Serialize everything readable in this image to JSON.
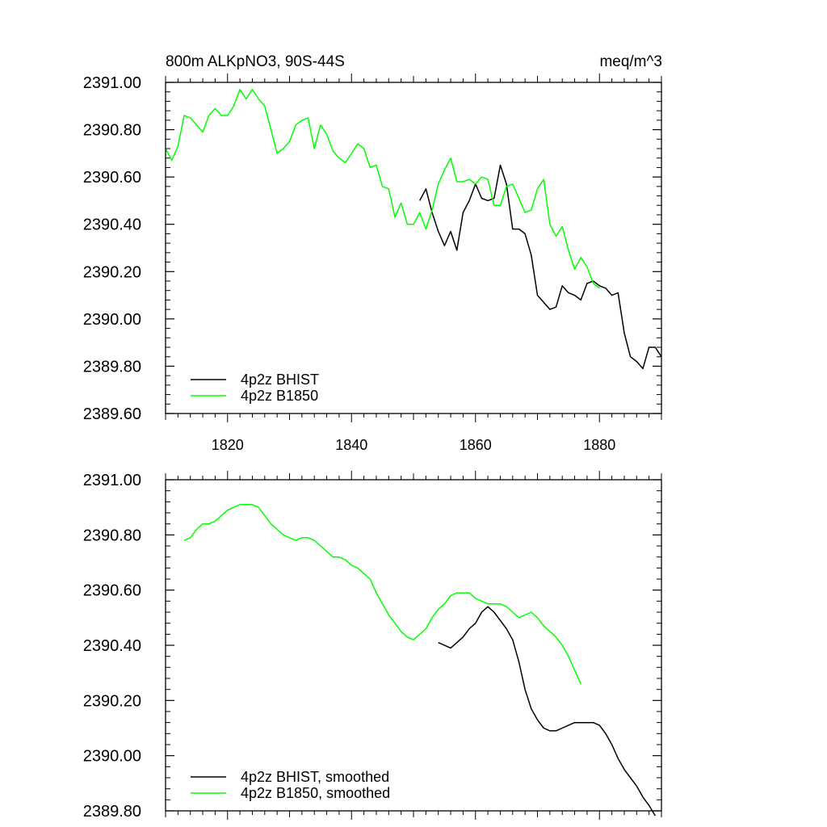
{
  "chart_data": [
    {
      "type": "line",
      "title": "800m ALKpNO3, 90S-44S",
      "units": "meq/m^3",
      "xlim": [
        1810,
        1890
      ],
      "ylim": [
        2389.6,
        2391.0
      ],
      "xticks": [
        "1820",
        "1840",
        "1860",
        "1880"
      ],
      "yticks": [
        "2389.60",
        "2389.80",
        "2390.00",
        "2390.20",
        "2390.40",
        "2390.60",
        "2390.80",
        "2391.00"
      ],
      "grid": false,
      "legend_position": "bottom-left",
      "series": [
        {
          "name": "4p2z BHIST",
          "color": "#000000",
          "x": [
            1851,
            1852,
            1853,
            1854,
            1855,
            1856,
            1857,
            1858,
            1859,
            1860,
            1861,
            1862,
            1863,
            1864,
            1865,
            1866,
            1867,
            1868,
            1869,
            1870,
            1871,
            1872,
            1873,
            1874,
            1875,
            1876,
            1877,
            1878,
            1879,
            1880,
            1881,
            1882,
            1883,
            1884,
            1885,
            1886,
            1887,
            1888,
            1889,
            1890
          ],
          "y": [
            2390.5,
            2390.55,
            2390.45,
            2390.37,
            2390.31,
            2390.37,
            2390.29,
            2390.45,
            2390.5,
            2390.57,
            2390.51,
            2390.5,
            2390.51,
            2390.65,
            2390.57,
            2390.38,
            2390.38,
            2390.36,
            2390.27,
            2390.1,
            2390.07,
            2390.04,
            2390.05,
            2390.14,
            2390.11,
            2390.1,
            2390.08,
            2390.15,
            2390.16,
            2390.14,
            2390.13,
            2390.1,
            2390.11,
            2389.94,
            2389.84,
            2389.82,
            2389.79,
            2389.88,
            2389.88,
            2389.84
          ]
        },
        {
          "name": "4p2z B1850",
          "color": "#00ff00",
          "x": [
            1810,
            1811,
            1812,
            1813,
            1814,
            1815,
            1816,
            1817,
            1818,
            1819,
            1820,
            1821,
            1822,
            1823,
            1824,
            1825,
            1826,
            1827,
            1828,
            1829,
            1830,
            1831,
            1832,
            1833,
            1834,
            1835,
            1836,
            1837,
            1838,
            1839,
            1840,
            1841,
            1842,
            1843,
            1844,
            1845,
            1846,
            1847,
            1848,
            1849,
            1850,
            1851,
            1852,
            1853,
            1854,
            1855,
            1856,
            1857,
            1858,
            1859,
            1860,
            1861,
            1862,
            1863,
            1864,
            1865,
            1866,
            1867,
            1868,
            1869,
            1870,
            1871,
            1872,
            1873,
            1874,
            1875,
            1876,
            1877,
            1878,
            1879,
            1880
          ],
          "y": [
            2390.72,
            2390.67,
            2390.73,
            2390.86,
            2390.85,
            2390.82,
            2390.79,
            2390.86,
            2390.89,
            2390.86,
            2390.86,
            2390.9,
            2390.97,
            2390.93,
            2390.97,
            2390.93,
            2390.9,
            2390.8,
            2390.7,
            2390.72,
            2390.75,
            2390.82,
            2390.84,
            2390.85,
            2390.72,
            2390.82,
            2390.78,
            2390.71,
            2390.68,
            2390.66,
            2390.7,
            2390.74,
            2390.72,
            2390.64,
            2390.65,
            2390.56,
            2390.55,
            2390.43,
            2390.49,
            2390.4,
            2390.4,
            2390.45,
            2390.38,
            2390.46,
            2390.57,
            2390.63,
            2390.68,
            2390.58,
            2390.58,
            2390.59,
            2390.57,
            2390.6,
            2390.59,
            2390.48,
            2390.48,
            2390.56,
            2390.57,
            2390.51,
            2390.45,
            2390.46,
            2390.55,
            2390.59,
            2390.4,
            2390.35,
            2390.39,
            2390.29,
            2390.21,
            2390.26,
            2390.22,
            2390.15,
            2390.13
          ]
        }
      ]
    },
    {
      "type": "line",
      "title": "",
      "xlim": [
        1810,
        1890
      ],
      "ylim": [
        2389.8,
        2391.0
      ],
      "yticks": [
        "2389.80",
        "2390.00",
        "2390.20",
        "2390.40",
        "2390.60",
        "2390.80",
        "2391.00"
      ],
      "grid": false,
      "legend_position": "bottom-left",
      "series": [
        {
          "name": "4p2z BHIST, smoothed",
          "color": "#000000",
          "x": [
            1854,
            1856,
            1858,
            1859,
            1860,
            1861,
            1862,
            1863,
            1864,
            1865,
            1866,
            1867,
            1868,
            1869,
            1870,
            1871,
            1872,
            1873,
            1874,
            1875,
            1876,
            1877,
            1878,
            1879,
            1880,
            1881,
            1882,
            1883,
            1884,
            1885,
            1886,
            1887,
            1888,
            1889
          ],
          "y": [
            2390.41,
            2390.39,
            2390.43,
            2390.46,
            2390.48,
            2390.52,
            2390.54,
            2390.52,
            2390.49,
            2390.46,
            2390.42,
            2390.34,
            2390.24,
            2390.17,
            2390.13,
            2390.1,
            2390.09,
            2390.09,
            2390.1,
            2390.11,
            2390.12,
            2390.12,
            2390.12,
            2390.12,
            2390.11,
            2390.08,
            2390.04,
            2389.99,
            2389.95,
            2389.92,
            2389.89,
            2389.85,
            2389.82,
            2389.78
          ]
        },
        {
          "name": "4p2z B1850, smoothed",
          "color": "#00ff00",
          "x": [
            1813,
            1814,
            1815,
            1816,
            1817,
            1818,
            1819,
            1820,
            1821,
            1822,
            1823,
            1824,
            1825,
            1826,
            1827,
            1828,
            1829,
            1830,
            1831,
            1832,
            1833,
            1834,
            1835,
            1836,
            1837,
            1838,
            1839,
            1840,
            1841,
            1842,
            1843,
            1844,
            1845,
            1846,
            1847,
            1848,
            1849,
            1850,
            1851,
            1852,
            1853,
            1854,
            1855,
            1856,
            1857,
            1858,
            1859,
            1860,
            1861,
            1862,
            1863,
            1864,
            1865,
            1866,
            1867,
            1868,
            1869,
            1870,
            1871,
            1872,
            1873,
            1874,
            1875,
            1876,
            1877
          ],
          "y": [
            2390.78,
            2390.79,
            2390.82,
            2390.84,
            2390.84,
            2390.85,
            2390.87,
            2390.89,
            2390.9,
            2390.91,
            2390.91,
            2390.91,
            2390.9,
            2390.87,
            2390.84,
            2390.82,
            2390.8,
            2390.79,
            2390.78,
            2390.79,
            2390.79,
            2390.78,
            2390.76,
            2390.74,
            2390.72,
            2390.72,
            2390.71,
            2390.69,
            2390.68,
            2390.66,
            2390.64,
            2390.59,
            2390.55,
            2390.51,
            2390.48,
            2390.45,
            2390.43,
            2390.42,
            2390.44,
            2390.46,
            2390.5,
            2390.53,
            2390.55,
            2390.58,
            2390.59,
            2390.59,
            2390.59,
            2390.57,
            2390.56,
            2390.55,
            2390.55,
            2390.55,
            2390.54,
            2390.52,
            2390.5,
            2390.51,
            2390.52,
            2390.5,
            2390.47,
            2390.45,
            2390.43,
            2390.4,
            2390.36,
            2390.31,
            2390.26
          ]
        }
      ]
    }
  ]
}
